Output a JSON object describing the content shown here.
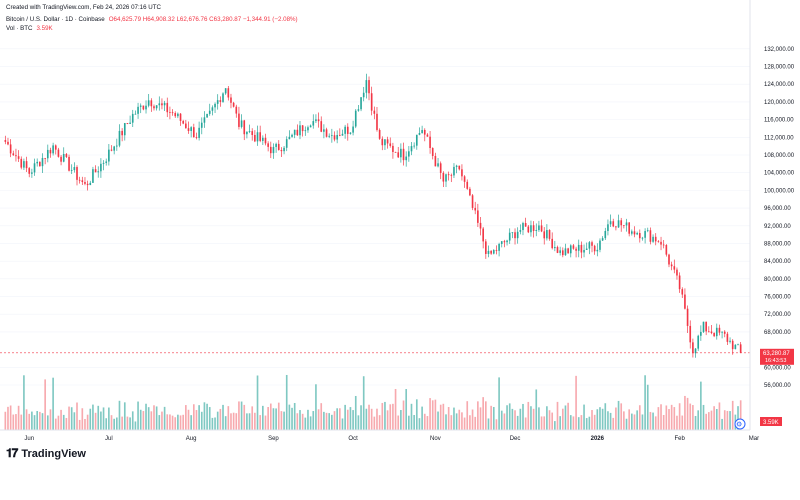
{
  "header": {
    "created": "Created with TradingView.com, Feb 24, 2026 07:16 UTC",
    "symbol": "Bitcoin / U.S. Dollar · 1D · Coinbase",
    "ohlc": "O64,625.79 H64,908.32 L62,676.76 C63,280.87 −1,344.91 (−2.08%)",
    "vol_label": "Vol · BTC",
    "vol_value": "3.59K"
  },
  "price_axis": {
    "ticks": [
      "132,000.00",
      "128,000.00",
      "124,000.00",
      "120,000.00",
      "116,000.00",
      "112,000.00",
      "108,000.00",
      "104,000.00",
      "100,000.00",
      "96,000.00",
      "92,000.00",
      "88,000.00",
      "84,000.00",
      "80,000.00",
      "76,000.00",
      "72,000.00",
      "68,000.00",
      "60,000.00",
      "56,000.00"
    ],
    "last_price": "63,280.87",
    "last_countdown": "16:43:53",
    "vol_tag": "3.59K"
  },
  "time_axis": {
    "labels": [
      "Jun",
      "Jul",
      "Aug",
      "Sep",
      "Oct",
      "Nov",
      "Dec",
      "2026",
      "Feb",
      "Mar"
    ]
  },
  "footer": {
    "brand": "TradingView"
  },
  "colors": {
    "up": "#26a69a",
    "down": "#f23645",
    "vol_up": "#7fc8c2",
    "vol_down": "#f7a9ae"
  },
  "chart_data": {
    "type": "candlestick",
    "title": "Bitcoin / U.S. Dollar · 1D · Coinbase",
    "ylim": [
      56000,
      134000
    ],
    "anchor_dates": [
      "2025-05-23",
      "2025-06-01",
      "2025-06-10",
      "2025-06-18",
      "2025-06-22",
      "2025-06-30",
      "2025-07-10",
      "2025-07-16",
      "2025-07-25",
      "2025-08-03",
      "2025-08-08",
      "2025-08-14",
      "2025-08-19",
      "2025-09-01",
      "2025-09-06",
      "2025-09-15",
      "2025-09-23",
      "2025-09-30",
      "2025-10-06",
      "2025-10-11",
      "2025-10-20",
      "2025-10-27",
      "2025-11-04",
      "2025-11-10",
      "2025-11-21",
      "2025-12-02",
      "2025-12-10",
      "2025-12-18",
      "2026-01-01",
      "2026-01-06",
      "2026-01-14",
      "2026-01-20",
      "2026-01-25",
      "2026-02-01",
      "2026-02-06",
      "2026-02-10",
      "2026-02-18",
      "2026-02-24"
    ],
    "anchor_closes": [
      111000,
      104000,
      110000,
      104000,
      101000,
      107500,
      117000,
      120500,
      117500,
      112500,
      117000,
      123500,
      115000,
      109000,
      111000,
      116000,
      112500,
      114000,
      125000,
      111000,
      108000,
      114000,
      102000,
      105000,
      85000,
      91000,
      92000,
      86000,
      87500,
      93500,
      91000,
      90000,
      88500,
      78000,
      64000,
      69000,
      67000,
      63280
    ]
  }
}
